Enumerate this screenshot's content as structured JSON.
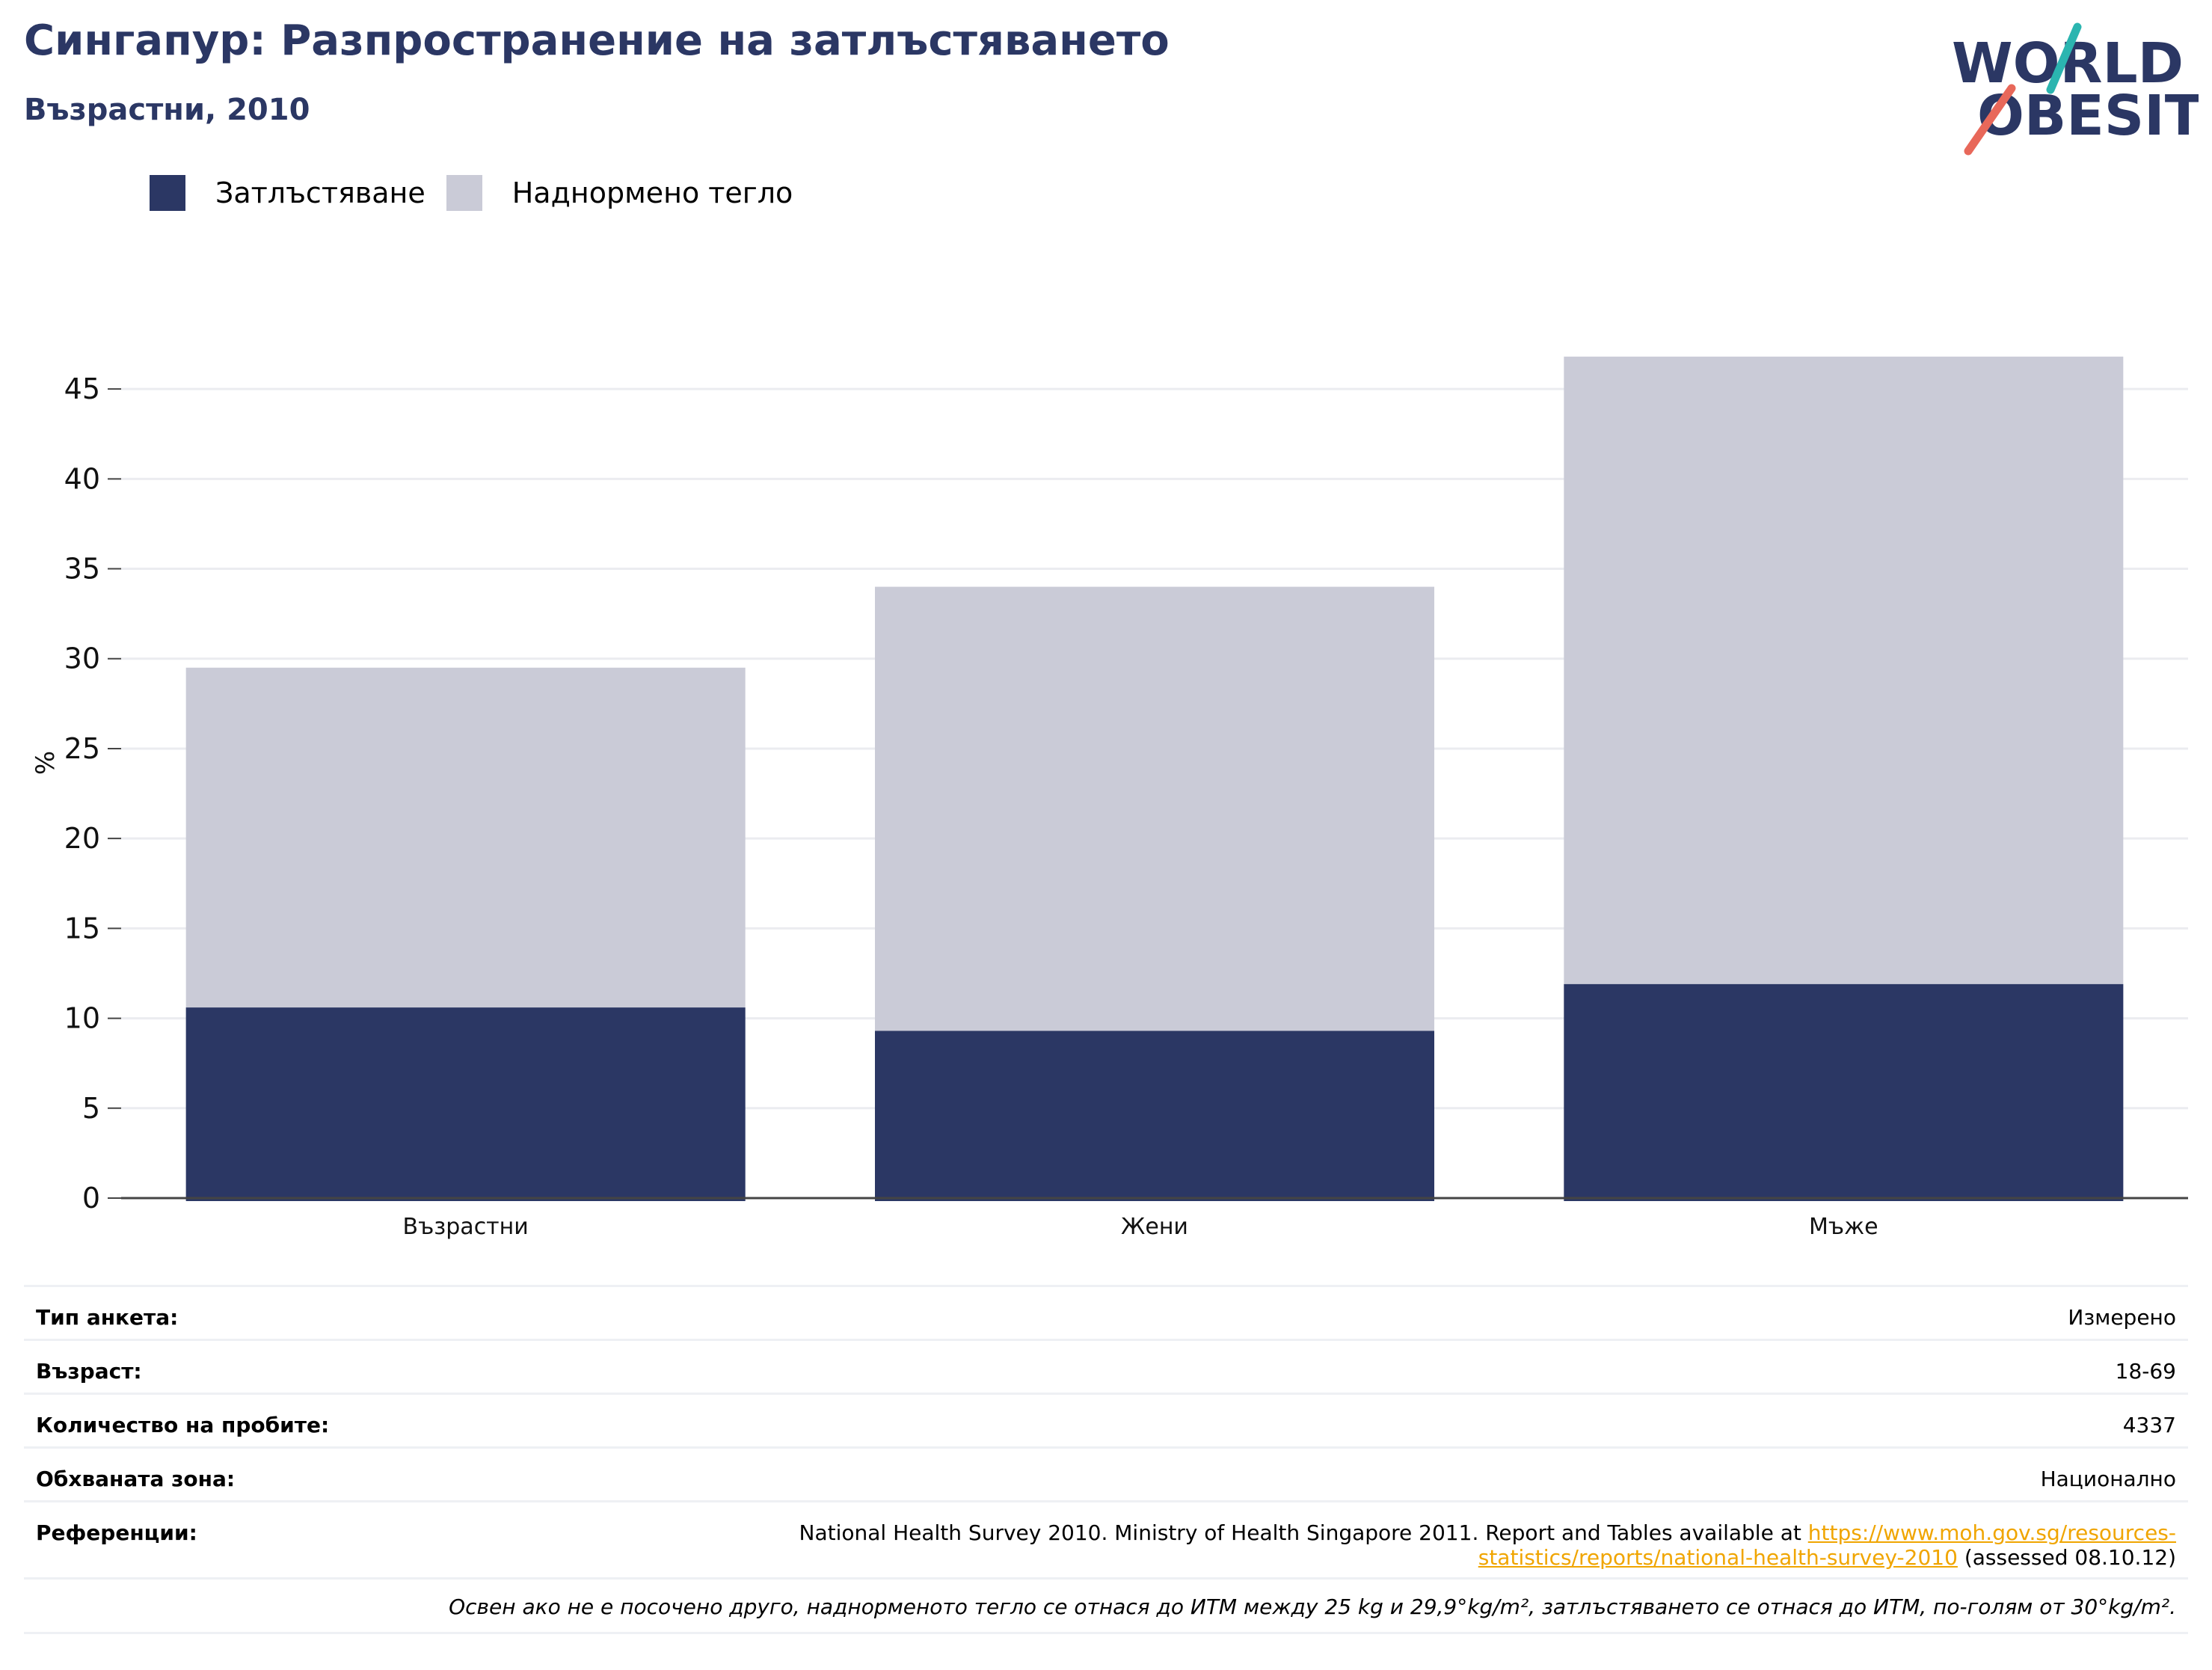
{
  "header": {
    "title": "Сингапур: Разпространение на затлъстяването",
    "subtitle": "Възрастни, 2010"
  },
  "logo": {
    "line1": "WORLD",
    "line2": "OBESITY",
    "teal": "#2bb5b0",
    "coral": "#e8685a",
    "navy": "#2b3764"
  },
  "legend": {
    "items": [
      {
        "label": "Затлъстяване",
        "color": "#2b3764"
      },
      {
        "label": "Наднормено тегло",
        "color": "#cacbd7"
      }
    ]
  },
  "chart_data": {
    "type": "bar",
    "stacked": false,
    "overlaid": true,
    "categories": [
      "Възрастни",
      "Жени",
      "Мъже"
    ],
    "series": [
      {
        "name": "Наднормено тегло",
        "color": "#cacbd7",
        "values": [
          29.5,
          34.0,
          46.8
        ]
      },
      {
        "name": "Затлъстяване",
        "color": "#2b3764",
        "values": [
          10.6,
          9.3,
          11.9
        ]
      }
    ],
    "ylabel": "%",
    "yticks": [
      0,
      5,
      10,
      15,
      20,
      25,
      30,
      35,
      40,
      45
    ],
    "ylim": [
      0,
      47.5
    ],
    "grid": true,
    "legend_position": "top-left"
  },
  "info": {
    "rows": [
      {
        "label": "Тип анкета:",
        "value": "Измерено"
      },
      {
        "label": "Възраст:",
        "value": "18-69"
      },
      {
        "label": "Количество на пробите:",
        "value": "4337"
      },
      {
        "label": "Обхваната зона:",
        "value": "Национално"
      }
    ],
    "reference": {
      "label": "Референции:",
      "text_before": "National Health Survey 2010. Ministry of Health Singapore 2011. Report and Tables available at ",
      "link_text": "https://www.moh.gov.sg/resources-statistics/reports/national-health-survey-2010",
      "text_after": " (assessed 08.10.12)"
    },
    "note": "Освен ако не е посочено друго, наднорменото тегло се отнася до ИТМ между 25 kg и 29,9°kg/m², затлъстяването се отнася до ИТМ, по-голям от 30°kg/m²."
  }
}
